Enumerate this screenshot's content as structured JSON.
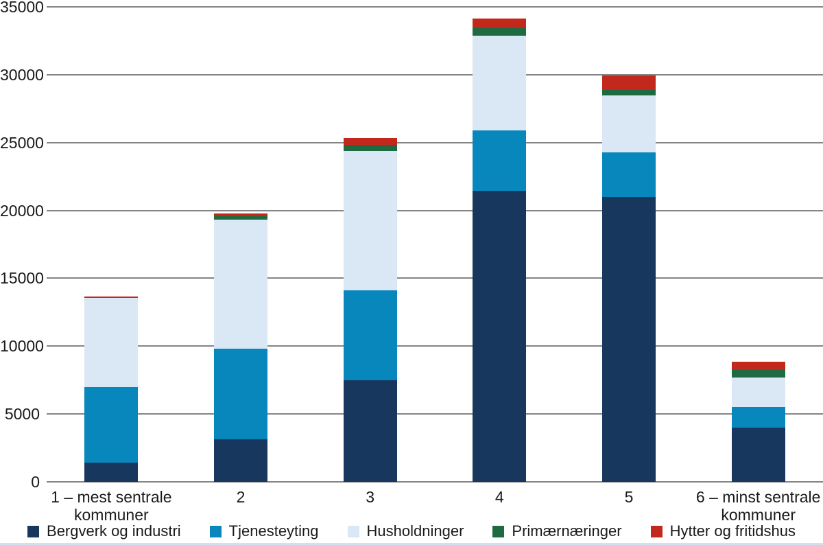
{
  "chart_data": {
    "type": "bar",
    "stacked": true,
    "title": "",
    "categories": [
      "1 – mest sentrale\nkommuner",
      "2",
      "3",
      "4",
      "5",
      "6 – minst sentrale\nkommuner"
    ],
    "series": [
      {
        "name": "Bergverk og industri",
        "color": "#17375E",
        "values": [
          1400,
          3150,
          7500,
          21450,
          21000,
          4000
        ]
      },
      {
        "name": "Tjenesteyting",
        "color": "#0887BD",
        "values": [
          5600,
          6650,
          6600,
          4450,
          3300,
          1500
        ]
      },
      {
        "name": "Husholdninger",
        "color": "#DAE7F4",
        "values": [
          6550,
          9500,
          10300,
          7000,
          4200,
          2200
        ]
      },
      {
        "name": "Primærnæringer",
        "color": "#1E6B41",
        "values": [
          0,
          250,
          450,
          550,
          400,
          550
        ]
      },
      {
        "name": "Hytter og fritidshus",
        "color": "#C3281C",
        "values": [
          100,
          250,
          500,
          700,
          1050,
          600
        ]
      }
    ],
    "ylim": [
      0,
      35000
    ],
    "ytick_step": 5000,
    "ytick_labels": [
      "0",
      "5000",
      "10000",
      "15000",
      "20000",
      "25000",
      "30000",
      "35000"
    ],
    "grid": true,
    "legend_position": "bottom"
  },
  "colors": {
    "gridline": "#858585",
    "axis_text": "#1a1a1a",
    "bottom_strip": "#CFE0F0"
  }
}
